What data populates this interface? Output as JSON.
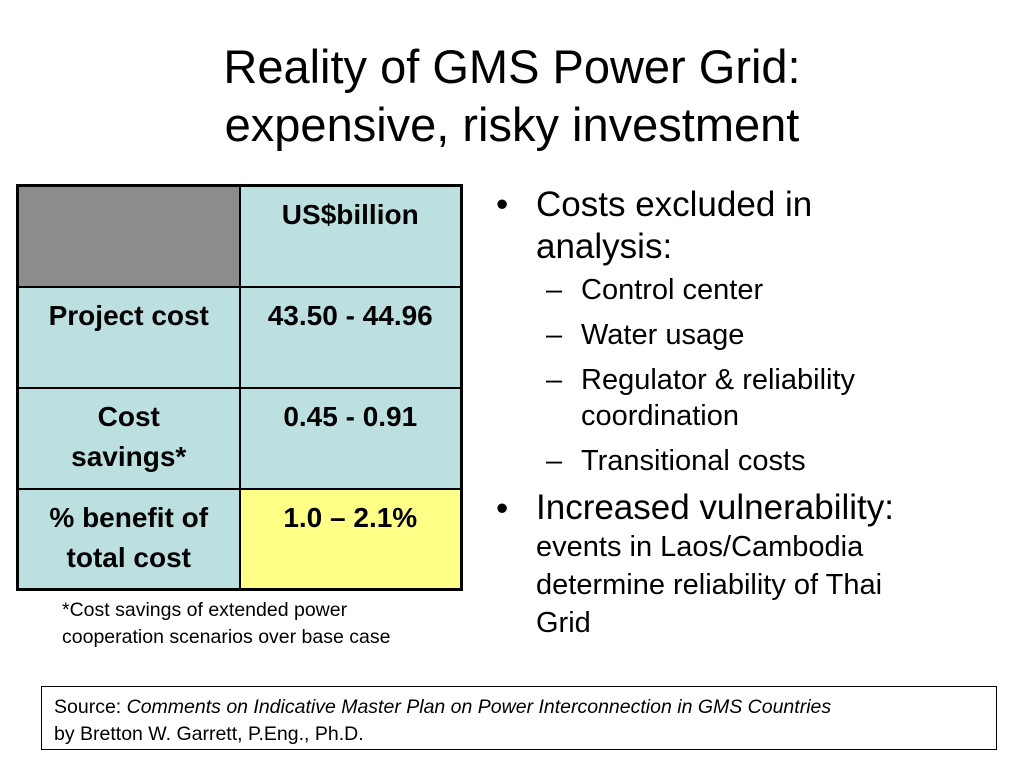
{
  "slide": {
    "title_line1": "Reality of GMS Power Grid:",
    "title_line2": "expensive, risky investment"
  },
  "table": {
    "header_unit": "US$billion",
    "rows": [
      {
        "label": "Project cost",
        "value": "43.50 - 44.96"
      },
      {
        "label_line1": "Cost",
        "label_line2": "savings*",
        "value": "0.45 - 0.91"
      },
      {
        "label_line1": "% benefit of",
        "label_line2": "total cost",
        "value": "1.0 – 2.1%"
      }
    ],
    "colors": {
      "cell_bg": "#bcdfe0",
      "corner_bg": "#8c8c8c",
      "highlight_bg": "#ffff88"
    }
  },
  "footnote": {
    "line1": "*Cost savings of extended power",
    "line2": "cooperation scenarios over base case"
  },
  "bullets": {
    "b1_line1": "Costs excluded in",
    "b1_line2": "analysis:",
    "sub_items": [
      {
        "text": "Control center"
      },
      {
        "text": "Water usage"
      },
      {
        "line1": "Regulator & reliability",
        "line2": "coordination"
      },
      {
        "text": "Transitional costs"
      }
    ],
    "b2_lead": "Increased vulnerability:",
    "b2_rest_line1": "events in Laos/Cambodia",
    "b2_rest_line2": "determine reliability of Thai",
    "b2_rest_line3": "Grid",
    "bullet_glyph": "•",
    "dash_glyph": "–"
  },
  "source": {
    "prefix": "Source: ",
    "title": "Comments on Indicative Master Plan on Power Interconnection in GMS Countries",
    "byline": "by Bretton W. Garrett, P.Eng., Ph.D."
  }
}
